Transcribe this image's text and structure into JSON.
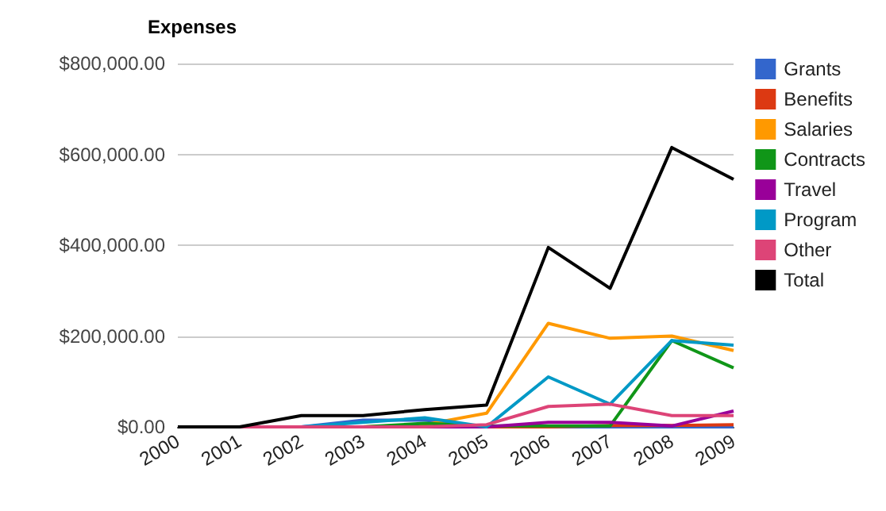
{
  "chart_data": {
    "type": "line",
    "title": "Expenses",
    "categories": [
      "2000",
      "2001",
      "2002",
      "2003",
      "2004",
      "2005",
      "2006",
      "2007",
      "2008",
      "2009"
    ],
    "series": [
      {
        "name": "Grants",
        "color": "#3366cc",
        "values": [
          0,
          0,
          0,
          15000,
          15000,
          0,
          0,
          0,
          0,
          0
        ]
      },
      {
        "name": "Benefits",
        "color": "#dc3912",
        "values": [
          null,
          null,
          null,
          null,
          0,
          0,
          0,
          3000,
          3000,
          5000
        ]
      },
      {
        "name": "Salaries",
        "color": "#ff9900",
        "values": [
          null,
          null,
          null,
          0,
          5000,
          30000,
          228000,
          195000,
          200000,
          168000
        ]
      },
      {
        "name": "Contracts",
        "color": "#109618",
        "values": [
          null,
          null,
          null,
          0,
          8000,
          2000,
          2000,
          2000,
          190000,
          130000
        ]
      },
      {
        "name": "Travel",
        "color": "#990099",
        "values": [
          null,
          null,
          null,
          0,
          0,
          0,
          10000,
          10000,
          2000,
          35000
        ]
      },
      {
        "name": "Program",
        "color": "#0099c6",
        "values": [
          0,
          0,
          0,
          10000,
          20000,
          0,
          110000,
          50000,
          190000,
          180000
        ]
      },
      {
        "name": "Other",
        "color": "#dd4477",
        "values": [
          0,
          0,
          0,
          0,
          0,
          5000,
          45000,
          50000,
          25000,
          25000
        ]
      },
      {
        "name": "Total",
        "color": "#000000",
        "values": [
          0,
          0,
          25000,
          25000,
          38000,
          48000,
          395000,
          305000,
          615000,
          545000
        ]
      }
    ],
    "ylim": [
      0,
      800000
    ],
    "yticks": [
      {
        "value": 0,
        "label": "$0.00"
      },
      {
        "value": 200000,
        "label": "$200,000.00"
      },
      {
        "value": 400000,
        "label": "$400,000.00"
      },
      {
        "value": 600000,
        "label": "$600,000.00"
      },
      {
        "value": 800000,
        "label": "$800,000.00"
      }
    ],
    "grid": "y",
    "legend": "right",
    "marker": "none",
    "line_style": "solid"
  }
}
